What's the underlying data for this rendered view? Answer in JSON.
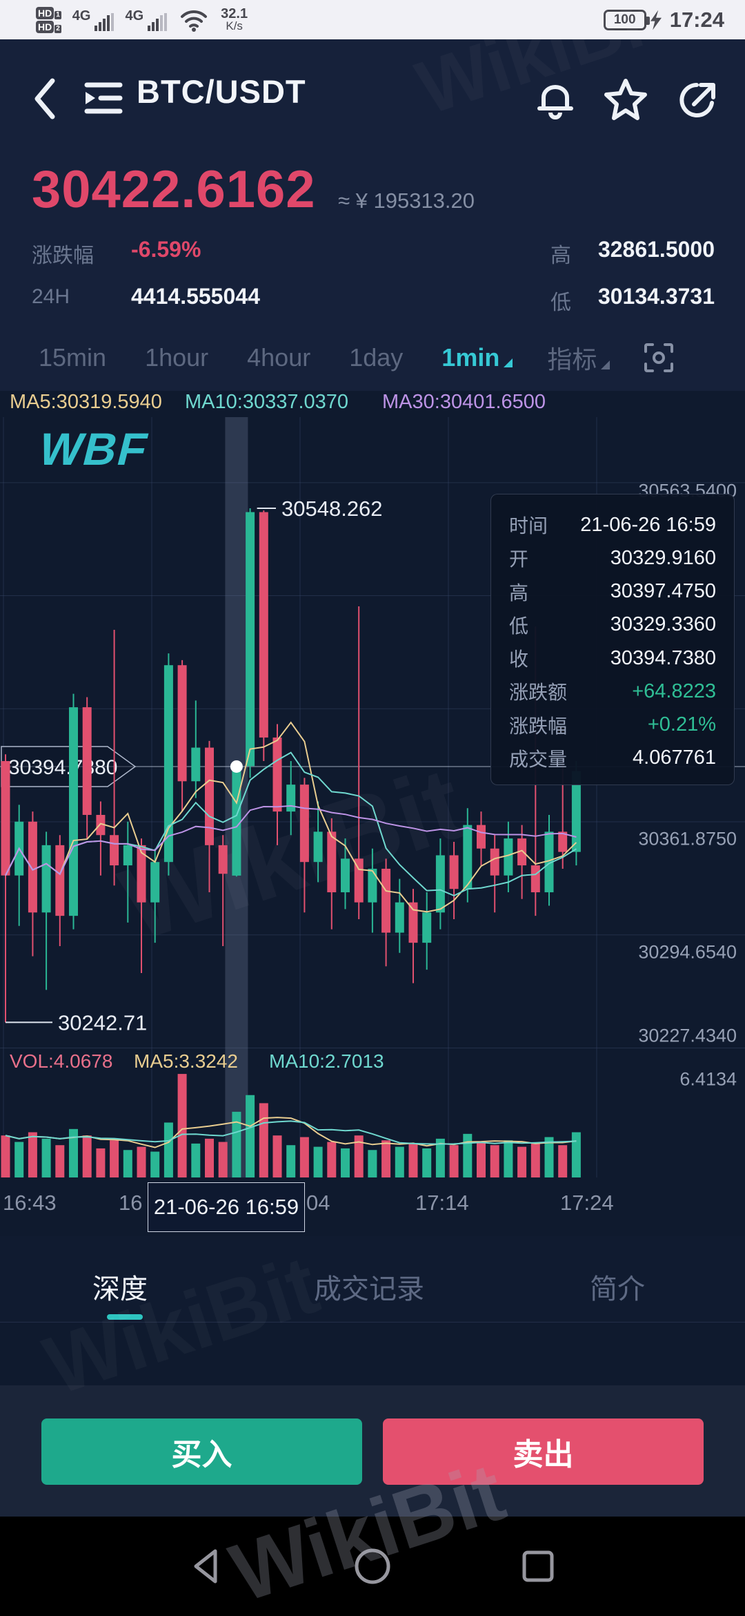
{
  "status_bar": {
    "hd1": "HD",
    "hd1_sub": "1",
    "hd2": "HD",
    "hd2_sub": "2",
    "net1": "4G",
    "net2": "4G",
    "speed_value": "32.1",
    "speed_unit": "K/s",
    "battery": "100",
    "time": "17:24"
  },
  "header": {
    "title": "BTC/USDT"
  },
  "price": {
    "last": "30422.6162",
    "approx": "≈ ¥ 195313.20",
    "change_label": "涨跌幅",
    "change_value": "-6.59%",
    "vol24_label": "24H",
    "vol24_value": "4414.555044",
    "high_label": "高",
    "high_value": "32861.5000",
    "low_label": "低",
    "low_value": "30134.3731"
  },
  "intervals": {
    "items": [
      "15min",
      "1hour",
      "4hour",
      "1day",
      "1min"
    ],
    "selected": "1min",
    "indicator_label": "指标"
  },
  "ma_row": {
    "ma5": "MA5:30319.5940",
    "ma10": "MA10:30337.0370",
    "ma30": "MA30:30401.6500"
  },
  "logo": "WBF",
  "watermark": "WikiBit",
  "tooltip": {
    "rows": [
      {
        "label": "时间",
        "value": "21-06-26 16:59",
        "highlight": false
      },
      {
        "label": "开",
        "value": "30329.9160",
        "highlight": false
      },
      {
        "label": "高",
        "value": "30397.4750",
        "highlight": false
      },
      {
        "label": "低",
        "value": "30329.3360",
        "highlight": false
      },
      {
        "label": "收",
        "value": "30394.7380",
        "highlight": false
      },
      {
        "label": "涨跌额",
        "value": "+64.8223",
        "highlight": true
      },
      {
        "label": "涨跌幅",
        "value": "+0.21%",
        "highlight": true
      },
      {
        "label": "成交量",
        "value": "4.067761",
        "highlight": false
      }
    ]
  },
  "vol_row": {
    "vol": "VOL:4.0678",
    "ma5": "MA5:3.3242",
    "ma10": "MA10:2.7013"
  },
  "bottom_tabs": {
    "items": [
      "深度",
      "成交记录",
      "简介"
    ],
    "selected": "深度"
  },
  "actions": {
    "buy": "买入",
    "sell": "卖出"
  },
  "chart_data": {
    "type": "candlestick",
    "pair": "BTC/USDT",
    "interval": "1min",
    "price_range": [
      30210,
      30600
    ],
    "y_axis_labels": [
      "30563.5400",
      "30361.8750",
      "30294.6540",
      "30227.4340"
    ],
    "y_axis_gridline_prices": [
      30563.54,
      30496.317,
      30429.096,
      30361.875,
      30294.654,
      30227.434
    ],
    "vol_axis_max_label": "6.4134",
    "vol_axis_max": 6.4134,
    "markers": {
      "high": "30548.262",
      "low": "30242.71",
      "current": "30394.7380",
      "current_price": 30394.738
    },
    "selected_index": 17,
    "x_ticks": [
      "16:43",
      "16",
      "21-06-26 16:59",
      "04",
      "17:14",
      "17:24"
    ],
    "colors": {
      "up": "#2ab795",
      "down": "#e1506f",
      "ma5": "#e9cd90",
      "ma10": "#6fd8cf",
      "ma30": "#bd93e6",
      "grid": "rgba(58,74,106,0.45)",
      "band": "rgba(125,140,170,0.28)",
      "accent": "#36c9d5",
      "text": "#e9edf5"
    },
    "candles": [
      [
        "16:42",
        30398,
        30402,
        30242.71,
        30330,
        2.6
      ],
      [
        "16:43",
        30330,
        30372,
        30300,
        30362,
        2.2
      ],
      [
        "16:44",
        30362,
        30368,
        30282,
        30308,
        2.8
      ],
      [
        "16:45",
        30308,
        30356,
        30262,
        30348,
        2.4
      ],
      [
        "16:46",
        30348,
        30354,
        30288,
        30306,
        2.0
      ],
      [
        "16:47",
        30306,
        30438,
        30298,
        30430,
        3.0
      ],
      [
        "16:48",
        30430,
        30436,
        30352,
        30366,
        2.6
      ],
      [
        "16:49",
        30366,
        30374,
        30330,
        30354,
        1.8
      ],
      [
        "16:50",
        30354,
        30476,
        30324,
        30336,
        2.3
      ],
      [
        "16:51",
        30336,
        30362,
        30302,
        30348,
        1.7
      ],
      [
        "16:52",
        30348,
        30352,
        30272,
        30314,
        1.9
      ],
      [
        "16:53",
        30314,
        30346,
        30290,
        30338,
        1.6
      ],
      [
        "16:54",
        30338,
        30462,
        30330,
        30455,
        3.4
      ],
      [
        "16:55",
        30455,
        30458,
        30368,
        30386,
        6.41
      ],
      [
        "16:56",
        30386,
        30434,
        30376,
        30406,
        2.1
      ],
      [
        "16:57",
        30406,
        30410,
        30320,
        30348,
        2.4
      ],
      [
        "16:58",
        30348,
        30354,
        30288,
        30331,
        2.2
      ],
      [
        "16:59",
        30329.916,
        30397.475,
        30329.336,
        30394.738,
        4.068
      ],
      [
        "17:00",
        30395,
        30548.262,
        30388,
        30546,
        5.1
      ],
      [
        "17:01",
        30546,
        30547,
        30398,
        30412,
        4.6
      ],
      [
        "17:02",
        30412,
        30420,
        30348,
        30368,
        2.6
      ],
      [
        "17:03",
        30368,
        30398,
        30354,
        30384,
        2.0
      ],
      [
        "17:04",
        30384,
        30388,
        30308,
        30338,
        2.5
      ],
      [
        "17:05",
        30338,
        30374,
        30326,
        30356,
        1.9
      ],
      [
        "17:06",
        30356,
        30364,
        30298,
        30320,
        2.2
      ],
      [
        "17:07",
        30320,
        30352,
        30310,
        30340,
        1.8
      ],
      [
        "17:08",
        30340,
        30490,
        30304,
        30314,
        2.6
      ],
      [
        "17:09",
        30314,
        30346,
        30296,
        30334,
        1.7
      ],
      [
        "17:10",
        30334,
        30340,
        30276,
        30296,
        2.3
      ],
      [
        "17:11",
        30296,
        30328,
        30284,
        30314,
        1.9
      ],
      [
        "17:12",
        30314,
        30322,
        30266,
        30290,
        2.1
      ],
      [
        "17:13",
        30290,
        30320,
        30274,
        30308,
        1.8
      ],
      [
        "17:14",
        30308,
        30352,
        30298,
        30342,
        2.4
      ],
      [
        "17:15",
        30342,
        30350,
        30304,
        30322,
        2.0
      ],
      [
        "17:16",
        30322,
        30370,
        30314,
        30360,
        2.7
      ],
      [
        "17:17",
        30360,
        30368,
        30336,
        30346,
        2.2
      ],
      [
        "17:18",
        30346,
        30354,
        30308,
        30330,
        2.0
      ],
      [
        "17:19",
        30330,
        30362,
        30320,
        30352,
        2.3
      ],
      [
        "17:20",
        30352,
        30360,
        30316,
        30336,
        1.9
      ],
      [
        "17:21",
        30336,
        30478,
        30306,
        30320,
        2.1
      ],
      [
        "17:22",
        30320,
        30366,
        30312,
        30356,
        2.5
      ],
      [
        "17:23",
        30356,
        30402,
        30334,
        30344,
        2.0
      ],
      [
        "17:24",
        30344,
        30398,
        30336,
        30392,
        2.8
      ]
    ]
  }
}
